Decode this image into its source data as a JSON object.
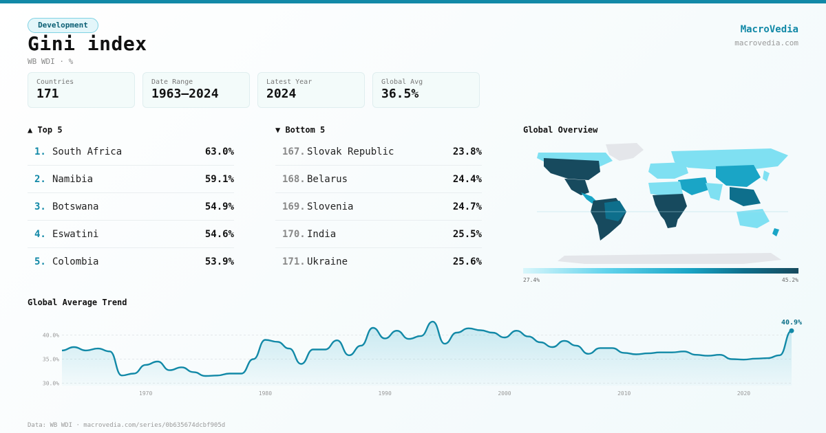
{
  "header": {
    "tag": "Development",
    "title": "Gini index",
    "subtitle": "WB WDI · %",
    "brand": "MacroVedia",
    "brand_url": "macrovedia.com"
  },
  "stats": [
    {
      "label": "Countries",
      "value": "171"
    },
    {
      "label": "Date Range",
      "value": "1963–2024"
    },
    {
      "label": "Latest Year",
      "value": "2024"
    },
    {
      "label": "Global Avg",
      "value": "36.5%"
    }
  ],
  "top5": {
    "heading": "▲ Top 5",
    "items": [
      {
        "rank": "1.",
        "name": "South Africa",
        "value": "63.0%"
      },
      {
        "rank": "2.",
        "name": "Namibia",
        "value": "59.1%"
      },
      {
        "rank": "3.",
        "name": "Botswana",
        "value": "54.9%"
      },
      {
        "rank": "4.",
        "name": "Eswatini",
        "value": "54.6%"
      },
      {
        "rank": "5.",
        "name": "Colombia",
        "value": "53.9%"
      }
    ]
  },
  "bottom5": {
    "heading": "▼ Bottom 5",
    "items": [
      {
        "rank": "167.",
        "name": "Slovak Republic",
        "value": "23.8%"
      },
      {
        "rank": "168.",
        "name": "Belarus",
        "value": "24.4%"
      },
      {
        "rank": "169.",
        "name": "Slovenia",
        "value": "24.7%"
      },
      {
        "rank": "170.",
        "name": "India",
        "value": "25.5%"
      },
      {
        "rank": "171.",
        "name": "Ukraine",
        "value": "25.6%"
      }
    ]
  },
  "map": {
    "heading": "Global Overview",
    "legend_min": "27.4%",
    "legend_max": "45.2%",
    "colors": {
      "no_data": "#e4e6ea",
      "light": "#7fe0f2",
      "mid": "#1aa5c6",
      "dark": "#174a5e"
    }
  },
  "trend": {
    "heading": "Global Average Trend",
    "last_label": "40.9%",
    "line_color": "#1289a7"
  },
  "footer": "Data: WB WDI · macrovedia.com/series/0b635674dcbf905d",
  "chart_data": {
    "type": "area",
    "title": "Global Average Trend",
    "xlim": [
      1963,
      2024
    ],
    "ylim": [
      29.5,
      43.5
    ],
    "yticks": [
      30,
      35,
      40
    ],
    "ytick_labels": [
      "30.0%",
      "35.0%",
      "40.0%"
    ],
    "xticks": [
      1970,
      1980,
      1990,
      2000,
      2010,
      2020
    ],
    "grid": true,
    "x": [
      1963,
      1964,
      1965,
      1966,
      1967,
      1968,
      1969,
      1970,
      1971,
      1972,
      1973,
      1974,
      1975,
      1976,
      1977,
      1978,
      1979,
      1980,
      1981,
      1982,
      1983,
      1984,
      1985,
      1986,
      1987,
      1988,
      1989,
      1990,
      1991,
      1992,
      1993,
      1994,
      1995,
      1996,
      1997,
      1998,
      1999,
      2000,
      2001,
      2002,
      2003,
      2004,
      2005,
      2006,
      2007,
      2008,
      2009,
      2010,
      2011,
      2012,
      2013,
      2014,
      2015,
      2016,
      2017,
      2018,
      2019,
      2020,
      2021,
      2022,
      2023,
      2024
    ],
    "y": [
      36.8,
      37.5,
      36.8,
      37.2,
      36.6,
      31.6,
      32.0,
      33.8,
      34.5,
      32.7,
      33.3,
      32.3,
      31.5,
      31.6,
      32.0,
      32.0,
      35.0,
      39.0,
      38.6,
      37.2,
      34.0,
      37.0,
      37.0,
      38.9,
      35.8,
      37.8,
      41.5,
      39.3,
      40.9,
      39.2,
      39.8,
      42.8,
      38.2,
      40.5,
      41.4,
      41.0,
      40.5,
      39.5,
      40.9,
      39.7,
      38.5,
      37.5,
      38.8,
      37.8,
      36.1,
      37.3,
      37.3,
      36.3,
      36.0,
      36.2,
      36.4,
      36.4,
      36.6,
      35.9,
      35.7,
      35.9,
      35.0,
      34.9,
      35.1,
      35.2,
      35.8,
      40.9
    ]
  }
}
